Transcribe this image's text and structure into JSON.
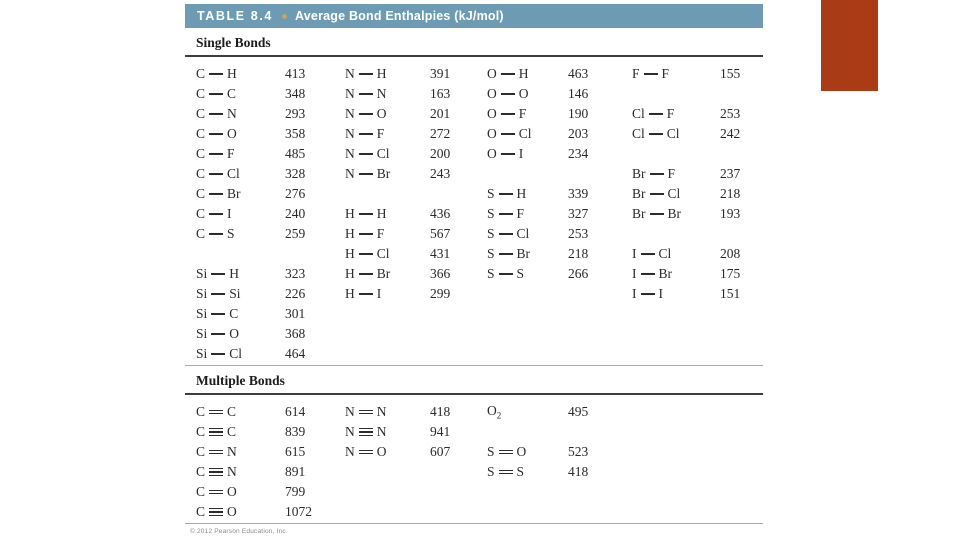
{
  "colors": {
    "header_bar": "#6c9bb3",
    "bullet": "#c9a45c",
    "accent_block": "#a93b17",
    "rule_dark": "#3d3d3d",
    "rule_light": "#a9a9a9"
  },
  "table": {
    "number": "TABLE 8.4",
    "title": "Average Bond Enthalpies (kJ/mol)",
    "sections": [
      {
        "heading": "Single Bonds",
        "rows": [
          [
            {
              "a": "C",
              "bond": "single",
              "b": "H",
              "v": "413"
            },
            {
              "a": "N",
              "bond": "single",
              "b": "H",
              "v": "391"
            },
            {
              "a": "O",
              "bond": "single",
              "b": "H",
              "v": "463"
            },
            {
              "a": "F",
              "bond": "single",
              "b": "F",
              "v": "155"
            }
          ],
          [
            {
              "a": "C",
              "bond": "single",
              "b": "C",
              "v": "348"
            },
            {
              "a": "N",
              "bond": "single",
              "b": "N",
              "v": "163"
            },
            {
              "a": "O",
              "bond": "single",
              "b": "O",
              "v": "146"
            },
            null
          ],
          [
            {
              "a": "C",
              "bond": "single",
              "b": "N",
              "v": "293"
            },
            {
              "a": "N",
              "bond": "single",
              "b": "O",
              "v": "201"
            },
            {
              "a": "O",
              "bond": "single",
              "b": "F",
              "v": "190"
            },
            {
              "a": "Cl",
              "bond": "single",
              "b": "F",
              "v": "253"
            }
          ],
          [
            {
              "a": "C",
              "bond": "single",
              "b": "O",
              "v": "358"
            },
            {
              "a": "N",
              "bond": "single",
              "b": "F",
              "v": "272"
            },
            {
              "a": "O",
              "bond": "single",
              "b": "Cl",
              "v": "203"
            },
            {
              "a": "Cl",
              "bond": "single",
              "b": "Cl",
              "v": "242"
            }
          ],
          [
            {
              "a": "C",
              "bond": "single",
              "b": "F",
              "v": "485"
            },
            {
              "a": "N",
              "bond": "single",
              "b": "Cl",
              "v": "200"
            },
            {
              "a": "O",
              "bond": "single",
              "b": "I",
              "v": "234"
            },
            null
          ],
          [
            {
              "a": "C",
              "bond": "single",
              "b": "Cl",
              "v": "328"
            },
            {
              "a": "N",
              "bond": "single",
              "b": "Br",
              "v": "243"
            },
            null,
            {
              "a": "Br",
              "bond": "single",
              "b": "F",
              "v": "237"
            }
          ],
          [
            {
              "a": "C",
              "bond": "single",
              "b": "Br",
              "v": "276"
            },
            null,
            {
              "a": "S",
              "bond": "single",
              "b": "H",
              "v": "339"
            },
            {
              "a": "Br",
              "bond": "single",
              "b": "Cl",
              "v": "218"
            }
          ],
          [
            {
              "a": "C",
              "bond": "single",
              "b": "I",
              "v": "240"
            },
            {
              "a": "H",
              "bond": "single",
              "b": "H",
              "v": "436"
            },
            {
              "a": "S",
              "bond": "single",
              "b": "F",
              "v": "327"
            },
            {
              "a": "Br",
              "bond": "single",
              "b": "Br",
              "v": "193"
            }
          ],
          [
            {
              "a": "C",
              "bond": "single",
              "b": "S",
              "v": "259"
            },
            {
              "a": "H",
              "bond": "single",
              "b": "F",
              "v": "567"
            },
            {
              "a": "S",
              "bond": "single",
              "b": "Cl",
              "v": "253"
            },
            null
          ],
          [
            null,
            {
              "a": "H",
              "bond": "single",
              "b": "Cl",
              "v": "431"
            },
            {
              "a": "S",
              "bond": "single",
              "b": "Br",
              "v": "218"
            },
            {
              "a": "I",
              "bond": "single",
              "b": "Cl",
              "v": "208"
            }
          ],
          [
            {
              "a": "Si",
              "bond": "single",
              "b": "H",
              "v": "323"
            },
            {
              "a": "H",
              "bond": "single",
              "b": "Br",
              "v": "366"
            },
            {
              "a": "S",
              "bond": "single",
              "b": "S",
              "v": "266"
            },
            {
              "a": "I",
              "bond": "single",
              "b": "Br",
              "v": "175"
            }
          ],
          [
            {
              "a": "Si",
              "bond": "single",
              "b": "Si",
              "v": "226"
            },
            {
              "a": "H",
              "bond": "single",
              "b": "I",
              "v": "299"
            },
            null,
            {
              "a": "I",
              "bond": "single",
              "b": "I",
              "v": "151"
            }
          ],
          [
            {
              "a": "Si",
              "bond": "single",
              "b": "C",
              "v": "301"
            },
            null,
            null,
            null
          ],
          [
            {
              "a": "Si",
              "bond": "single",
              "b": "O",
              "v": "368"
            },
            null,
            null,
            null
          ],
          [
            {
              "a": "Si",
              "bond": "single",
              "b": "Cl",
              "v": "464"
            },
            null,
            null,
            null
          ]
        ]
      },
      {
        "heading": "Multiple Bonds",
        "rows": [
          [
            {
              "a": "C",
              "bond": "double",
              "b": "C",
              "v": "614"
            },
            {
              "a": "N",
              "bond": "double",
              "b": "N",
              "v": "418"
            },
            {
              "f": "O",
              "sub": "2",
              "v": "495"
            },
            null
          ],
          [
            {
              "a": "C",
              "bond": "triple",
              "b": "C",
              "v": "839"
            },
            {
              "a": "N",
              "bond": "triple",
              "b": "N",
              "v": "941"
            },
            null,
            null
          ],
          [
            {
              "a": "C",
              "bond": "double",
              "b": "N",
              "v": "615"
            },
            {
              "a": "N",
              "bond": "double",
              "b": "O",
              "v": "607"
            },
            {
              "a": "S",
              "bond": "double",
              "b": "O",
              "v": "523"
            },
            null
          ],
          [
            {
              "a": "C",
              "bond": "triple",
              "b": "N",
              "v": "891"
            },
            null,
            {
              "a": "S",
              "bond": "double",
              "b": "S",
              "v": "418"
            },
            null
          ],
          [
            {
              "a": "C",
              "bond": "double",
              "b": "O",
              "v": "799"
            },
            null,
            null,
            null
          ],
          [
            {
              "a": "C",
              "bond": "triple",
              "b": "O",
              "v": "1072"
            },
            null,
            null,
            null
          ]
        ]
      }
    ]
  },
  "footer": {
    "copyright": "© 2012 Pearson Education, Inc."
  }
}
